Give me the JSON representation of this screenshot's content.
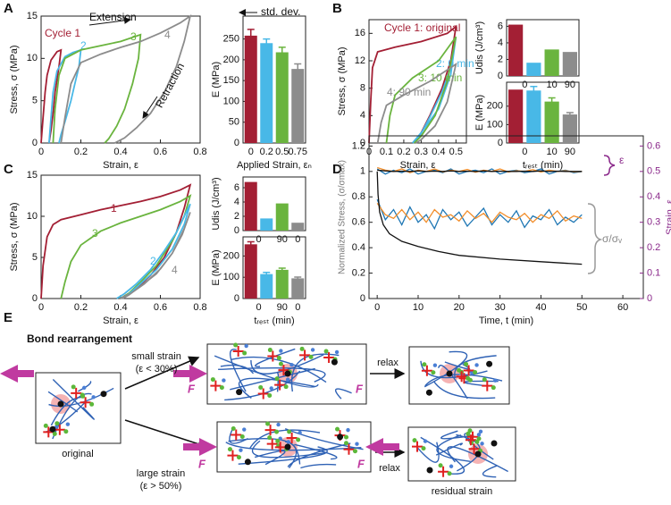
{
  "panel_labels": [
    "A",
    "B",
    "C",
    "D",
    "E"
  ],
  "chart_data": [
    {
      "type": "line",
      "xlabel": "Strain, ε",
      "ylabel": "Stress, σ (MPa)",
      "xlim": [
        0,
        0.8
      ],
      "xticks": [
        0,
        0.2,
        0.4,
        0.6,
        0.8
      ],
      "ylim": [
        0,
        15
      ],
      "yticks": [
        0,
        5,
        10,
        15
      ],
      "annotations": [
        "Extension",
        "Retraction"
      ],
      "series": [
        {
          "name": "Cycle 1",
          "color": "#a31f34",
          "x": [
            0,
            0.01,
            0.02,
            0.03,
            0.05,
            0.08,
            0.1,
            0.09,
            0.07,
            0.06,
            0.05,
            0.04
          ],
          "values": [
            0,
            3,
            6,
            8,
            9.8,
            10.8,
            11,
            9,
            6,
            3.5,
            1.5,
            0
          ]
        },
        {
          "name": "2",
          "color": "#48b8e7",
          "x": [
            0.04,
            0.05,
            0.06,
            0.08,
            0.12,
            0.16,
            0.2,
            0.19,
            0.17,
            0.15,
            0.12,
            0.1,
            0.09
          ],
          "values": [
            0,
            3,
            6,
            8.5,
            10.2,
            10.7,
            11,
            9,
            7,
            5,
            2.5,
            1,
            0
          ]
        },
        {
          "name": "3",
          "color": "#6ab43e",
          "x": [
            0.06,
            0.07,
            0.09,
            0.12,
            0.2,
            0.3,
            0.4,
            0.5,
            0.49,
            0.46,
            0.42,
            0.38,
            0.34,
            0.32
          ],
          "values": [
            0,
            4,
            8,
            10,
            11,
            11.5,
            12,
            12.8,
            10,
            7,
            4,
            2,
            0.5,
            0
          ]
        },
        {
          "name": "4",
          "color": "#8c8c8c",
          "x": [
            0.1,
            0.12,
            0.15,
            0.2,
            0.3,
            0.4,
            0.5,
            0.6,
            0.7,
            0.75,
            0.72,
            0.68,
            0.62,
            0.55,
            0.48,
            0.42,
            0.37
          ],
          "values": [
            0,
            3,
            7,
            9.5,
            10.5,
            11.3,
            12,
            13,
            14.2,
            15,
            12,
            9,
            6,
            3.5,
            1.8,
            0.6,
            0
          ]
        }
      ]
    },
    {
      "type": "bar",
      "ylabel": "E (MPa)",
      "xlabel": "Applied Strain, εₙ",
      "categories": [
        "0",
        "0.2",
        "0.5",
        "0.75"
      ],
      "values": [
        258,
        240,
        218,
        178
      ],
      "errors": [
        15,
        10,
        12,
        12
      ],
      "colors": [
        "#a31f34",
        "#48b8e7",
        "#6ab43e",
        "#8c8c8c"
      ],
      "ylim": [
        0,
        305
      ],
      "yticks": [
        0,
        50,
        100,
        150,
        200,
        250
      ],
      "annotations": [
        "std. dev."
      ]
    },
    {
      "type": "line",
      "xlabel": "Strain, ε",
      "ylabel": "Stress, σ (MPa)",
      "xlim": [
        0,
        0.56
      ],
      "xticks": [
        0,
        0.1,
        0.2,
        0.3,
        0.4,
        0.5
      ],
      "ylim": [
        0,
        18
      ],
      "yticks": [
        0,
        4,
        8,
        12,
        16
      ],
      "series": [
        {
          "name": "Cycle 1: original",
          "color": "#a31f34",
          "x": [
            0,
            0.01,
            0.02,
            0.05,
            0.15,
            0.3,
            0.45,
            0.5,
            0.47,
            0.42,
            0.35,
            0.3,
            0.26
          ],
          "values": [
            0,
            6,
            11,
            13.3,
            14,
            14.8,
            16,
            17,
            12,
            8,
            4,
            1.5,
            0
          ]
        },
        {
          "name": "2: 0 min",
          "color": "#48b8e7",
          "x": [
            0.25,
            0.3,
            0.4,
            0.47,
            0.5,
            0.47,
            0.42,
            0.35,
            0.3,
            0.26
          ],
          "values": [
            0,
            1.5,
            5,
            10,
            15.5,
            11,
            7.5,
            3.8,
            1.4,
            0
          ]
        },
        {
          "name": "3: 10 min",
          "color": "#6ab43e",
          "x": [
            0.1,
            0.12,
            0.15,
            0.25,
            0.4,
            0.5,
            0.45,
            0.38,
            0.3,
            0.26
          ],
          "values": [
            0,
            4,
            7,
            9.5,
            12,
            15.5,
            9,
            4,
            1,
            0
          ]
        },
        {
          "name": "4: 90 min",
          "color": "#8c8c8c",
          "x": [
            0.05,
            0.07,
            0.1,
            0.2,
            0.35,
            0.5,
            0.45,
            0.38,
            0.3,
            0.27
          ],
          "values": [
            0,
            3,
            5.5,
            7,
            9,
            11.5,
            6,
            2.5,
            0.5,
            0
          ]
        }
      ]
    },
    {
      "type": "bar",
      "ylabel": "Udis (J/cm³)",
      "categories": [
        null,
        "0",
        "10",
        "90"
      ],
      "values": [
        6.2,
        1.6,
        3.2,
        2.9
      ],
      "colors": [
        "#a31f34",
        "#48b8e7",
        "#6ab43e",
        "#8c8c8c"
      ],
      "ylim": [
        0,
        6.8
      ],
      "yticks": [
        0,
        2,
        4,
        6
      ]
    },
    {
      "type": "bar",
      "ylabel": "E (MPa)",
      "xlabel": "tᵣₑₛₜ (min)",
      "categories": [
        null,
        "0",
        "10",
        "90"
      ],
      "values": [
        290,
        285,
        225,
        155
      ],
      "errors": [
        null,
        22,
        20,
        10
      ],
      "colors": [
        "#a31f34",
        "#48b8e7",
        "#6ab43e",
        "#8c8c8c"
      ],
      "ylim": [
        0,
        330
      ],
      "yticks": [
        0,
        100,
        200
      ]
    },
    {
      "type": "line",
      "xlabel": "Strain, ε",
      "ylabel": "Stress, σ (MPa)",
      "xlim": [
        0,
        0.8
      ],
      "xticks": [
        0,
        0.2,
        0.4,
        0.6,
        0.8
      ],
      "ylim": [
        0,
        15
      ],
      "yticks": [
        0,
        5,
        10,
        15
      ],
      "series": [
        {
          "name": "1",
          "color": "#a31f34",
          "x": [
            0,
            0.01,
            0.03,
            0.06,
            0.1,
            0.2,
            0.3,
            0.4,
            0.5,
            0.6,
            0.7,
            0.75,
            0.72,
            0.68,
            0.62,
            0.55,
            0.48,
            0.42,
            0.4
          ],
          "values": [
            0,
            4,
            7.5,
            9,
            9.6,
            10.2,
            10.8,
            11.3,
            11.8,
            12.4,
            13.2,
            13.8,
            11,
            8,
            5,
            2.8,
            1.2,
            0.3,
            0
          ]
        },
        {
          "name": "3",
          "color": "#6ab43e",
          "x": [
            0.1,
            0.12,
            0.15,
            0.2,
            0.3,
            0.4,
            0.5,
            0.6,
            0.7,
            0.75,
            0.72,
            0.66,
            0.58,
            0.5,
            0.44,
            0.4
          ],
          "values": [
            0,
            2,
            4.5,
            6.5,
            8.2,
            9.2,
            10,
            10.8,
            11.8,
            12.5,
            10,
            7,
            4,
            2,
            0.6,
            0
          ]
        },
        {
          "name": "2",
          "color": "#48b8e7",
          "x": [
            0.38,
            0.42,
            0.48,
            0.55,
            0.62,
            0.68,
            0.73,
            0.75,
            0.72,
            0.66,
            0.58,
            0.5,
            0.44,
            0.4
          ],
          "values": [
            0,
            0.6,
            1.8,
            3.5,
            5.8,
            8,
            10.5,
            11.5,
            9,
            6,
            3.5,
            1.8,
            0.5,
            0
          ]
        },
        {
          "name": "4",
          "color": "#8c8c8c",
          "x": [
            0.4,
            0.45,
            0.52,
            0.6,
            0.66,
            0.71,
            0.75,
            0.72,
            0.66,
            0.58,
            0.5,
            0.44,
            0.41
          ],
          "values": [
            0,
            0.6,
            1.8,
            3.6,
            5.5,
            7.8,
            10.5,
            8.5,
            5.5,
            3,
            1.5,
            0.4,
            0
          ]
        }
      ]
    },
    {
      "type": "bar",
      "ylabel": "Udis (J/cm³)",
      "categories": [
        null,
        "0",
        "90",
        "0"
      ],
      "values": [
        6.8,
        1.7,
        3.8,
        1.1
      ],
      "colors": [
        "#a31f34",
        "#48b8e7",
        "#6ab43e",
        "#8c8c8c"
      ],
      "ylim": [
        0,
        7.5
      ],
      "yticks": [
        0,
        2,
        4,
        6
      ]
    },
    {
      "type": "bar",
      "ylabel": "E (MPa)",
      "xlabel": "tᵣₑₛₜ (min)",
      "categories": [
        null,
        "0",
        "90",
        "0"
      ],
      "values": [
        255,
        115,
        135,
        95
      ],
      "errors": [
        12,
        8,
        8,
        6
      ],
      "colors": [
        "#a31f34",
        "#48b8e7",
        "#6ab43e",
        "#8c8c8c"
      ],
      "ylim": [
        0,
        290
      ],
      "yticks": [
        0,
        100,
        200
      ]
    },
    {
      "type": "line",
      "xlabel": "Time, t (min)",
      "ylabel": "Normalized Stress, (σ/σmax)",
      "y2label": "Strain, ε",
      "xlim": [
        -2,
        65
      ],
      "xticks": [
        0,
        10,
        20,
        30,
        40,
        50,
        60
      ],
      "ylim": [
        0,
        1.28
      ],
      "yticks": [
        0,
        0.2,
        0.4,
        0.6,
        0.8,
        1,
        1.2
      ],
      "y2lim": [
        0,
        0.64
      ],
      "y2ticks": [
        0,
        0.1,
        0.2,
        0.3,
        0.4,
        0.5,
        0.6
      ],
      "annotations": [
        "ε",
        "σ/σᵥ"
      ],
      "series": [
        {
          "color": "#1f77b4",
          "axis": "y",
          "x": [
            0,
            2,
            4,
            6,
            8,
            10,
            12,
            14,
            16,
            18,
            20,
            22,
            24,
            26,
            28,
            30,
            32,
            34,
            36,
            38,
            40,
            42,
            44,
            46,
            48,
            50
          ],
          "values": [
            0.78,
            0.62,
            0.7,
            0.58,
            0.72,
            0.6,
            0.66,
            0.55,
            0.7,
            0.62,
            0.68,
            0.57,
            0.64,
            0.71,
            0.58,
            0.66,
            0.6,
            0.69,
            0.56,
            0.65,
            0.62,
            0.7,
            0.58,
            0.64,
            0.6,
            0.66
          ]
        },
        {
          "color": "#f28e2b",
          "axis": "y",
          "x": [
            0,
            2,
            4,
            6,
            8,
            10,
            12,
            14,
            16,
            18,
            20,
            22,
            24,
            26,
            28,
            30,
            32,
            34,
            36,
            38,
            40,
            42,
            44,
            46,
            48,
            50
          ],
          "values": [
            0.75,
            0.66,
            0.63,
            0.7,
            0.62,
            0.68,
            0.6,
            0.7,
            0.64,
            0.66,
            0.61,
            0.69,
            0.63,
            0.67,
            0.6,
            0.68,
            0.64,
            0.62,
            0.67,
            0.6,
            0.66,
            0.63,
            0.69,
            0.61,
            0.65,
            0.63
          ]
        },
        {
          "color": "#1f77b4",
          "axis": "y2",
          "x": [
            0,
            2,
            4,
            6,
            8,
            10,
            12,
            14,
            16,
            18,
            20,
            22,
            24,
            26,
            28,
            30,
            32,
            34,
            36,
            38,
            40,
            42,
            44,
            46,
            48,
            50
          ],
          "values": [
            0.51,
            0.49,
            0.505,
            0.495,
            0.51,
            0.49,
            0.5,
            0.505,
            0.495,
            0.51,
            0.49,
            0.5,
            0.505,
            0.495,
            0.51,
            0.49,
            0.5,
            0.505,
            0.495,
            0.5,
            0.51,
            0.49,
            0.5,
            0.505,
            0.495,
            0.5
          ]
        },
        {
          "color": "#f28e2b",
          "axis": "y2",
          "x": [
            0,
            2,
            4,
            6,
            8,
            10,
            12,
            14,
            16,
            18,
            20,
            22,
            24,
            26,
            28,
            30,
            32,
            34,
            36,
            38,
            40,
            42,
            44,
            46,
            48,
            50
          ],
          "values": [
            0.515,
            0.505,
            0.5,
            0.51,
            0.495,
            0.505,
            0.5,
            0.51,
            0.498,
            0.505,
            0.5,
            0.508,
            0.497,
            0.505,
            0.5,
            0.51,
            0.498,
            0.503,
            0.5,
            0.507,
            0.498,
            0.505,
            0.5,
            0.503,
            0.498,
            0.5
          ]
        },
        {
          "color": "#111111",
          "axis": "y2",
          "x": [
            0,
            2,
            4,
            6,
            8,
            10,
            12,
            14,
            16,
            18,
            20,
            22,
            24,
            26,
            28,
            30,
            32,
            34,
            36,
            38,
            40,
            42,
            44,
            46,
            48,
            50
          ],
          "values": [
            0.505,
            0.502,
            0.5,
            0.501,
            0.5,
            0.502,
            0.5,
            0.501,
            0.5,
            0.502,
            0.5,
            0.501,
            0.5,
            0.502,
            0.5,
            0.501,
            0.5,
            0.5,
            0.501,
            0.5,
            0.502,
            0.5,
            0.501,
            0.5,
            0.5,
            0.5
          ]
        },
        {
          "color": "#111111",
          "axis": "y",
          "x": [
            0,
            0.2,
            0.6,
            1.5,
            3,
            6,
            10,
            15,
            20,
            30,
            40,
            50
          ],
          "values": [
            1,
            0.82,
            0.68,
            0.58,
            0.51,
            0.45,
            0.41,
            0.37,
            0.34,
            0.31,
            0.29,
            0.27
          ]
        }
      ]
    }
  ],
  "diagram": {
    "title": "Bond rearrangement",
    "branches": [
      {
        "label": "small strain",
        "condition": "(ε < 30%)"
      },
      {
        "label": "large strain",
        "condition": "(ε > 50%)"
      }
    ],
    "relax": [
      "relax",
      "relax"
    ],
    "forces": [
      "F",
      "F",
      "F",
      "F"
    ],
    "captions": [
      "original",
      "residual strain"
    ]
  }
}
